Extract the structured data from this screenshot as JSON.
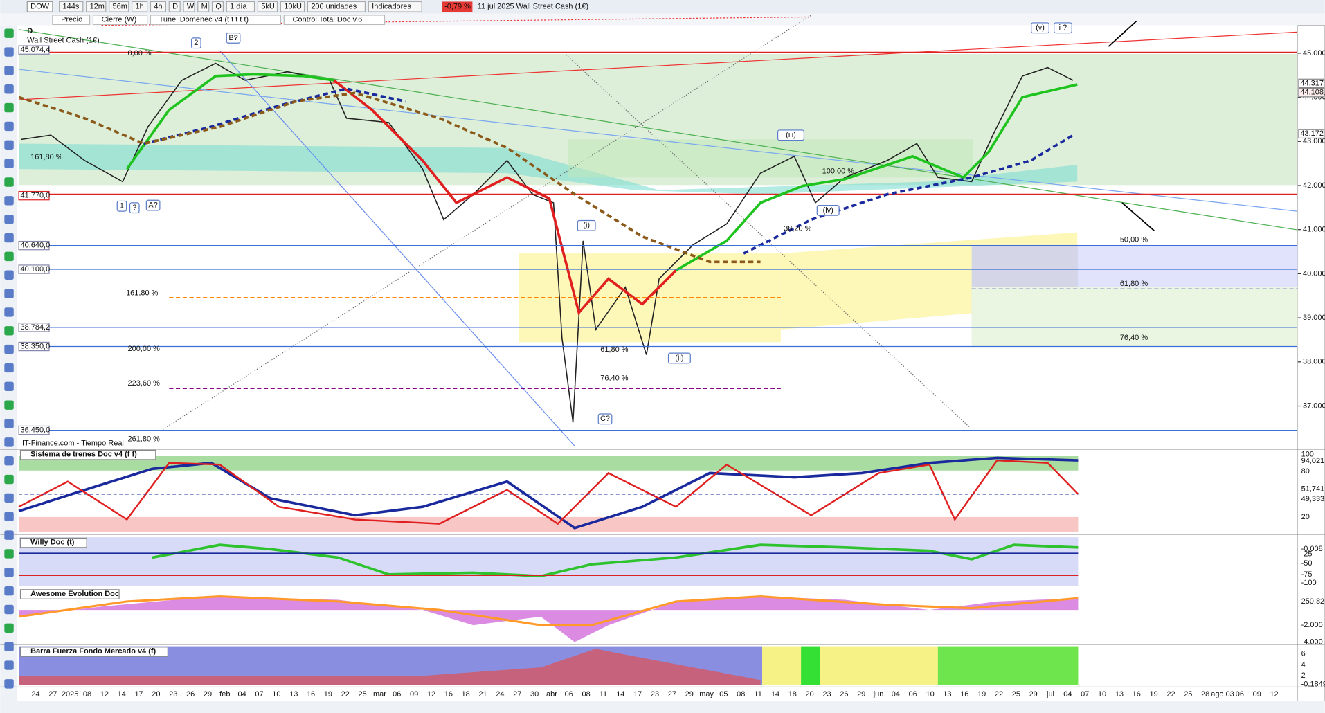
{
  "toolbar": {
    "instrument": "DOW",
    "buttons": [
      "144s",
      "12m",
      "56m",
      "1h",
      "4h",
      "D",
      "W",
      "M",
      "Q",
      "1 día",
      "5kU",
      "10kU",
      "200 unidades",
      "Indicadores"
    ],
    "price_change": "-0,79 %",
    "headline": "11 jul 2025 Wall Street Cash (1€)"
  },
  "indicators": [
    "Precio",
    "Cierre (W)",
    "Tunel Domenec v4 (t t t t t)",
    "Control Total Doc v.6"
  ],
  "chart": {
    "timeframe": "D",
    "title": "Wall Street Cash (1€)",
    "source": "IT-Finance.com - Tiempo Real",
    "price_axis": [
      {
        "value": 45000,
        "label": "45.000"
      },
      {
        "value": 44000,
        "label": "44.000"
      },
      {
        "value": 43000,
        "label": "43.000"
      },
      {
        "value": 42000,
        "label": "42.000"
      },
      {
        "value": 41000,
        "label": "41.000"
      },
      {
        "value": 40000,
        "label": "40.000"
      },
      {
        "value": 39000,
        "label": "39.000"
      },
      {
        "value": 38000,
        "label": "38.000"
      },
      {
        "value": 37000,
        "label": "37.000"
      }
    ],
    "current_prices": [
      {
        "value": 44317,
        "label": "44.317"
      },
      {
        "value": 44108,
        "label": "44.108"
      },
      {
        "value": 43172,
        "label": "43.172"
      }
    ],
    "levels": [
      {
        "value": 45074.4,
        "label": "45.074,4"
      },
      {
        "value": 41770,
        "label": "41.770,0"
      },
      {
        "value": 40640,
        "label": "40.640,0"
      },
      {
        "value": 40100,
        "label": "40.100,0"
      },
      {
        "value": 38784.2,
        "label": "38.784,2"
      },
      {
        "value": 38350,
        "label": "38.350,0"
      },
      {
        "value": 36450,
        "label": "36.450,0"
      }
    ],
    "annotations": [
      "B?",
      "2",
      "1",
      "?",
      "A?",
      "(i)",
      "(ii)",
      "(iii)",
      "(iv)",
      "(v)",
      "i ?",
      "C?"
    ],
    "fib_labels": [
      "0,00 %",
      "161,80 %",
      "161,80 %",
      "200,00 %",
      "223,60 %",
      "261,80 %",
      "61,80 %",
      "76,40 %",
      "38,20 %",
      "100,00 %",
      "50,00 %",
      "61,80 %",
      "76,40 %"
    ]
  },
  "panels": [
    {
      "title": "Sistema de trenes Doc v4 (f f)",
      "labels": [
        "100",
        "94,021",
        "80",
        "51,741",
        "49,333",
        "20"
      ]
    },
    {
      "title": "Willy Doc (t)",
      "labels": [
        "-0,008",
        "-25",
        "-50",
        "-75",
        "-100"
      ]
    },
    {
      "title": "Awesome Evolution Doc",
      "labels": [
        "250,82",
        "-2.000",
        "-4.000"
      ]
    },
    {
      "title": "Barra Fuerza Fondo Mercado v4 (f)",
      "labels": [
        "6",
        "4",
        "2",
        "-0,1849"
      ]
    }
  ],
  "dates": [
    "24",
    "27",
    "2025",
    "08",
    "12",
    "14",
    "17",
    "20",
    "23",
    "26",
    "29",
    "feb",
    "04",
    "07",
    "10",
    "13",
    "16",
    "19",
    "22",
    "25",
    "mar",
    "06",
    "09",
    "12",
    "16",
    "18",
    "21",
    "24",
    "27",
    "30",
    "abr",
    "06",
    "08",
    "11",
    "14",
    "17",
    "23",
    "27",
    "29",
    "may",
    "05",
    "08",
    "11",
    "14",
    "18",
    "20",
    "23",
    "26",
    "29",
    "jun",
    "04",
    "06",
    "10",
    "13",
    "16",
    "19",
    "22",
    "25",
    "29",
    "jul",
    "04",
    "07",
    "10",
    "13",
    "16",
    "19",
    "22",
    "25",
    "28",
    "ago 03",
    "06",
    "09",
    "12"
  ]
}
